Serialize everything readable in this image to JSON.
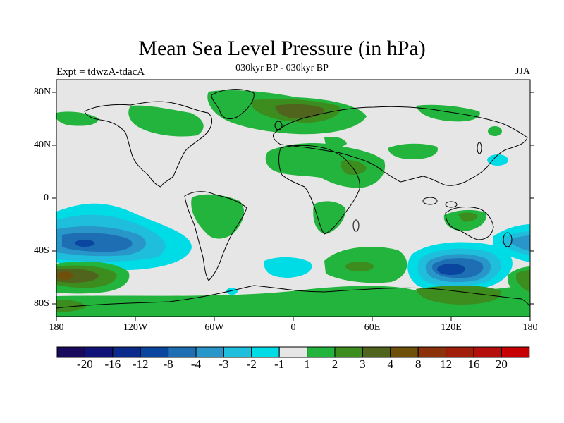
{
  "title": "Mean Sea Level Pressure (in hPa)",
  "subtitle": "030kyr BP - 030kyr BP",
  "left_label": "Expt = tdwzA-tdacA",
  "right_label": "JJA",
  "lat_ticks": [
    "80N",
    "40N",
    "0",
    "40S",
    "80S"
  ],
  "lon_ticks": [
    "180",
    "120W",
    "60W",
    "0",
    "60E",
    "120E",
    "180"
  ],
  "colorbar": {
    "labels": [
      "-20",
      "-16",
      "-12",
      "-8",
      "-4",
      "-3",
      "-2",
      "-1",
      "1",
      "2",
      "3",
      "4",
      "8",
      "12",
      "16",
      "20"
    ],
    "colors": [
      "#1a0a5e",
      "#101478",
      "#0a2a8c",
      "#0a46a0",
      "#1e6eb4",
      "#2896c8",
      "#1ebedc",
      "#00dce6",
      "#e6e6e6",
      "#22b43c",
      "#3c8c1e",
      "#50641e",
      "#6e500a",
      "#8c320a",
      "#a01e0a",
      "#b40f0a",
      "#c80000"
    ]
  },
  "palette": {
    "neutral": "#e6e6e6",
    "pos1": "#22b43c",
    "pos2": "#3c8c1e",
    "pos3": "#50641e",
    "pos4": "#6e500a",
    "neg1": "#00dce6",
    "neg2": "#1ebedc",
    "neg3": "#2896c8",
    "neg4": "#1e6eb4",
    "neg5": "#0a46a0",
    "coast": "#000000"
  }
}
